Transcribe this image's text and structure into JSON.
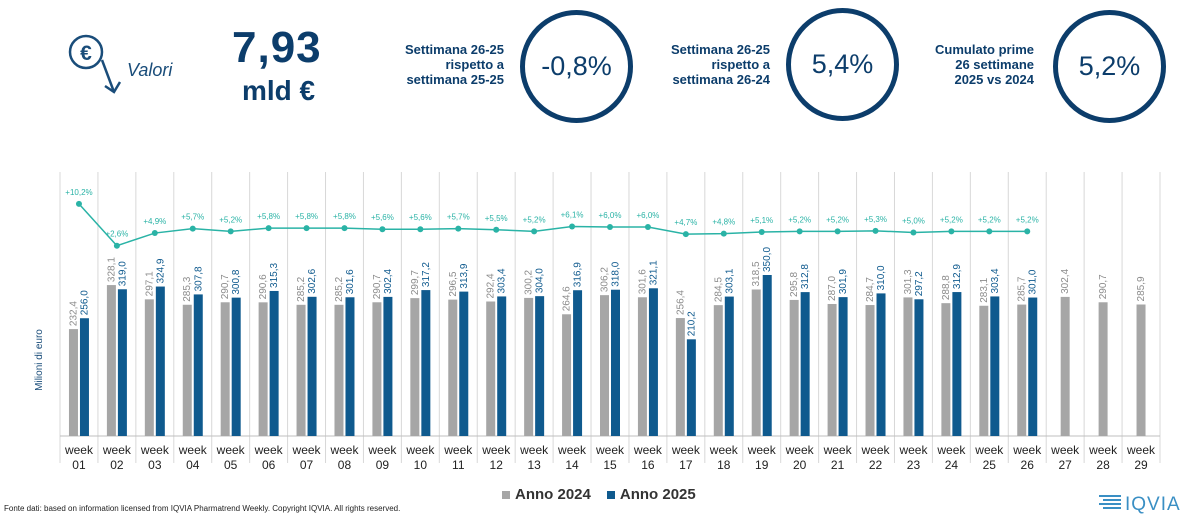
{
  "header": {
    "icon_symbol": "€",
    "icon_name": "euro-down-icon",
    "valori_label": "Valori",
    "big_value": "7,93",
    "big_unit": "mld €",
    "kpis": [
      {
        "lines": [
          "Settimana 26-25",
          "rispetto a",
          "settimana 25-25"
        ],
        "value": "-0,8%"
      },
      {
        "lines": [
          "Settimana 26-25",
          "rispetto a",
          "settimana 26-24"
        ],
        "value": "5,4%"
      },
      {
        "lines": [
          "Cumulato prime",
          "26 settimane",
          "2025 vs 2024"
        ],
        "value": "5,2%"
      }
    ]
  },
  "colors": {
    "bar_2024": "#a6a6a6",
    "bar_2025": "#0f5a8e",
    "growth_line": "#2ab3a6",
    "dark_blue": "#0c3d6b"
  },
  "chart_data": {
    "type": "bar",
    "ylabel": "Milioni di euro",
    "categories": [
      "week 01",
      "week 02",
      "week 03",
      "week 04",
      "week 05",
      "week 06",
      "week 07",
      "week 08",
      "week 09",
      "week 10",
      "week 11",
      "week 12",
      "week 13",
      "week 14",
      "week 15",
      "week 16",
      "week 17",
      "week 18",
      "week 19",
      "week 20",
      "week 21",
      "week 22",
      "week 23",
      "week 24",
      "week 25",
      "week 26",
      "week 27",
      "week 28",
      "week 29"
    ],
    "series": [
      {
        "name": "Anno 2024",
        "values": [
          232.4,
          328.1,
          297.1,
          285.3,
          290.7,
          290.6,
          285.2,
          285.2,
          290.7,
          299.7,
          296.5,
          292.4,
          300.2,
          264.6,
          306.2,
          301.6,
          256.4,
          284.5,
          318.5,
          295.8,
          287.0,
          284.7,
          301.3,
          288.8,
          283.1,
          285.7,
          302.4,
          290.7,
          285.9
        ],
        "labels": [
          "232,4",
          "328,1",
          "297,1",
          "285,3",
          "290,7",
          "290,6",
          "285,2",
          "285,2",
          "290,7",
          "299,7",
          "296,5",
          "292,4",
          "300,2",
          "264,6",
          "306,2",
          "301,6",
          "256,4",
          "284,5",
          "318,5",
          "295,8",
          "287,0",
          "284,7",
          "301,3",
          "288,8",
          "283,1",
          "285,7",
          "302,4",
          "290,7",
          "285,9"
        ]
      },
      {
        "name": "Anno 2025",
        "values": [
          256.0,
          319.0,
          324.9,
          307.8,
          300.8,
          315.3,
          302.6,
          301.6,
          302.4,
          317.2,
          313.9,
          303.4,
          304.0,
          316.9,
          318.0,
          321.1,
          210.2,
          303.1,
          350.0,
          312.8,
          301.9,
          310.0,
          297.2,
          312.9,
          303.4,
          301.0,
          null,
          null,
          null
        ],
        "labels": [
          "256,0",
          "319,0",
          "324,9",
          "307,8",
          "300,8",
          "315,3",
          "302,6",
          "301,6",
          "302,4",
          "317,2",
          "313,9",
          "303,4",
          "304,0",
          "316,9",
          "318,0",
          "321,1",
          "210,2",
          "303,1",
          "350,0",
          "312,8",
          "301,9",
          "310,0",
          "297,2",
          "312,9",
          "303,4",
          "301,0",
          "",
          "",
          ""
        ]
      }
    ],
    "growth": {
      "values": [
        10.2,
        2.6,
        4.9,
        5.7,
        5.2,
        5.8,
        5.8,
        5.8,
        5.6,
        5.6,
        5.7,
        5.5,
        5.2,
        6.1,
        6.0,
        6.0,
        4.7,
        4.8,
        5.1,
        5.2,
        5.2,
        5.3,
        5.0,
        5.2,
        5.2,
        5.2
      ],
      "labels": [
        "+10,2%",
        "+2,6%",
        "+4,9%",
        "+5,7%",
        "+5,2%",
        "+5,8%",
        "+5,8%",
        "+5,8%",
        "+5,6%",
        "+5,6%",
        "+5,7%",
        "+5,5%",
        "+5,2%",
        "+6,1%",
        "+6,0%",
        "+6,0%",
        "+4,7%",
        "+4,8%",
        "+5,1%",
        "+5,2%",
        "+5,2%",
        "+5,3%",
        "+5,0%",
        "+5,2%",
        "+5,2%",
        "+5,2%"
      ]
    },
    "legend_position": "bottom",
    "grid": true
  },
  "footer": {
    "source": "Fonte dati: based on information licensed from IQVIA Pharmatrend Weekly. Copyright IQVIA. All rights reserved.",
    "logo_text": "IQVIA"
  }
}
